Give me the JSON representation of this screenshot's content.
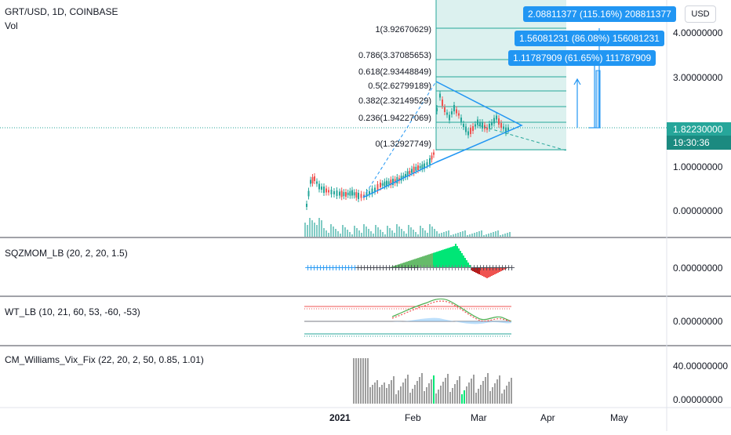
{
  "header": {
    "symbol": "GRT/USD, 1D, COINBASE",
    "volume_label": "Vol"
  },
  "currency_button": "USD",
  "price_scale": [
    "4.00000000",
    "3.00000000",
    "1.00000000",
    "0.00000000"
  ],
  "current_price": {
    "value": "1.82230000",
    "countdown": "19:30:36"
  },
  "fib_levels": [
    "1(3.92670629)",
    "0.786(3.37085653)",
    "0.618(2.93448849)",
    "0.5(2.62799189)",
    "0.382(2.32149529)",
    "0.236(1.94227069)",
    "0(1.32927749)"
  ],
  "targets": [
    "2.08811377 (115.16%) 208811377",
    "1.56081231 (86.08%) 156081231",
    "1.11787909 (61.65%) 111787909"
  ],
  "indicators": [
    {
      "title": "SQZMOM_LB (20, 2, 20, 1.5)",
      "scale": "0.00000000"
    },
    {
      "title": "WT_LB (10, 21, 60, 53, -60, -53)",
      "scale": "0.00000000"
    },
    {
      "title": "CM_Williams_Vix_Fix (22, 20, 2, 50, 0.85, 1.01)",
      "scale_top": "40.00000000",
      "scale_bottom": "0.00000000"
    }
  ],
  "time_axis": [
    "2021",
    "Feb",
    "Mar",
    "Apr",
    "May"
  ],
  "colors": {
    "up": "#26a69a",
    "down": "#ef5350",
    "accent": "#2196f3",
    "squeeze_green": "#00e676",
    "vix_gray": "#9e9e9e"
  }
}
